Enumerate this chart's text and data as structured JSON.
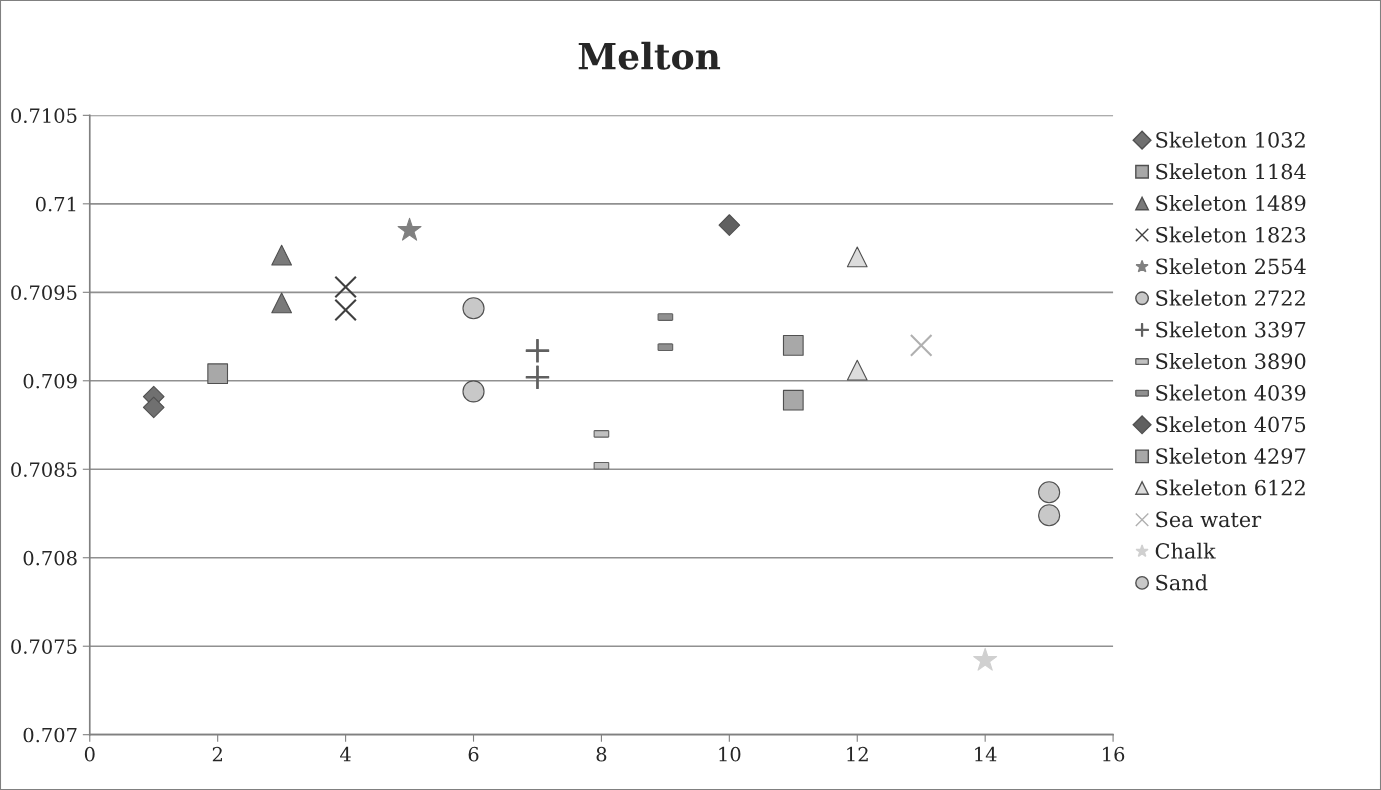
{
  "chart_data": {
    "type": "scatter",
    "title": "Melton",
    "xlim": [
      0,
      16
    ],
    "xticks": [
      0,
      2,
      4,
      6,
      8,
      10,
      12,
      14,
      16
    ],
    "ylim": [
      0.707,
      0.7105
    ],
    "yticks": [
      0.707,
      0.7075,
      0.708,
      0.7085,
      0.709,
      0.7095,
      0.71,
      0.7105
    ],
    "grid": "y",
    "legend": "right",
    "series": [
      {
        "name": "Skeleton 1032",
        "color": "#707070",
        "marker": "diamond",
        "x": [
          1,
          1
        ],
        "values": [
          0.70891,
          0.70885
        ]
      },
      {
        "name": "Skeleton 1184",
        "color": "#a8a8a8",
        "marker": "square",
        "x": [
          2
        ],
        "values": [
          0.70904
        ]
      },
      {
        "name": "Skeleton 1489",
        "color": "#7a7a7a",
        "marker": "triangle",
        "x": [
          3,
          3
        ],
        "values": [
          0.70971,
          0.70944
        ]
      },
      {
        "name": "Skeleton 1823",
        "color": "#404040",
        "marker": "cross",
        "x": [
          4,
          4
        ],
        "values": [
          0.70953,
          0.7094
        ]
      },
      {
        "name": "Skeleton 2554",
        "color": "#808080",
        "marker": "star",
        "x": [
          5
        ],
        "values": [
          0.70985
        ]
      },
      {
        "name": "Skeleton 2722",
        "color": "#c8c8c8",
        "marker": "circle",
        "x": [
          6,
          6
        ],
        "values": [
          0.70941,
          0.70894
        ]
      },
      {
        "name": "Skeleton 3397",
        "color": "#606060",
        "marker": "plus",
        "x": [
          7,
          7
        ],
        "values": [
          0.70917,
          0.70902
        ]
      },
      {
        "name": "Skeleton 3890",
        "color": "#c0c0c0",
        "x": [
          8,
          8
        ],
        "values": [
          0.7087,
          0.70852
        ]
      },
      {
        "name": "Skeleton 4039",
        "color": "#909090",
        "x": [
          9,
          9
        ],
        "values": [
          0.70936,
          0.70919
        ]
      },
      {
        "name": "Skeleton 4075",
        "color": "#606060",
        "marker": "diamond",
        "x": [
          10
        ],
        "values": [
          0.70988
        ]
      },
      {
        "name": "Skeleton 4297",
        "color": "#a8a8a8",
        "marker": "square",
        "x": [
          11,
          11
        ],
        "values": [
          0.7092,
          0.70889
        ]
      },
      {
        "name": "Skeleton 6122",
        "color": "#dcdcdc",
        "marker": "triangle",
        "x": [
          12,
          12
        ],
        "values": [
          0.7097,
          0.70906
        ]
      },
      {
        "name": "Sea water",
        "color": "#b0b0b0",
        "marker": "cross",
        "x": [
          13
        ],
        "values": [
          0.7092
        ]
      },
      {
        "name": "Chalk",
        "color": "#d0d0d0",
        "marker": "star",
        "x": [
          14
        ],
        "values": [
          0.70742
        ]
      },
      {
        "name": "Sand",
        "color": "#c8c8c8",
        "marker": "circle",
        "x": [
          15,
          15
        ],
        "values": [
          0.70837,
          0.70824
        ]
      }
    ]
  }
}
